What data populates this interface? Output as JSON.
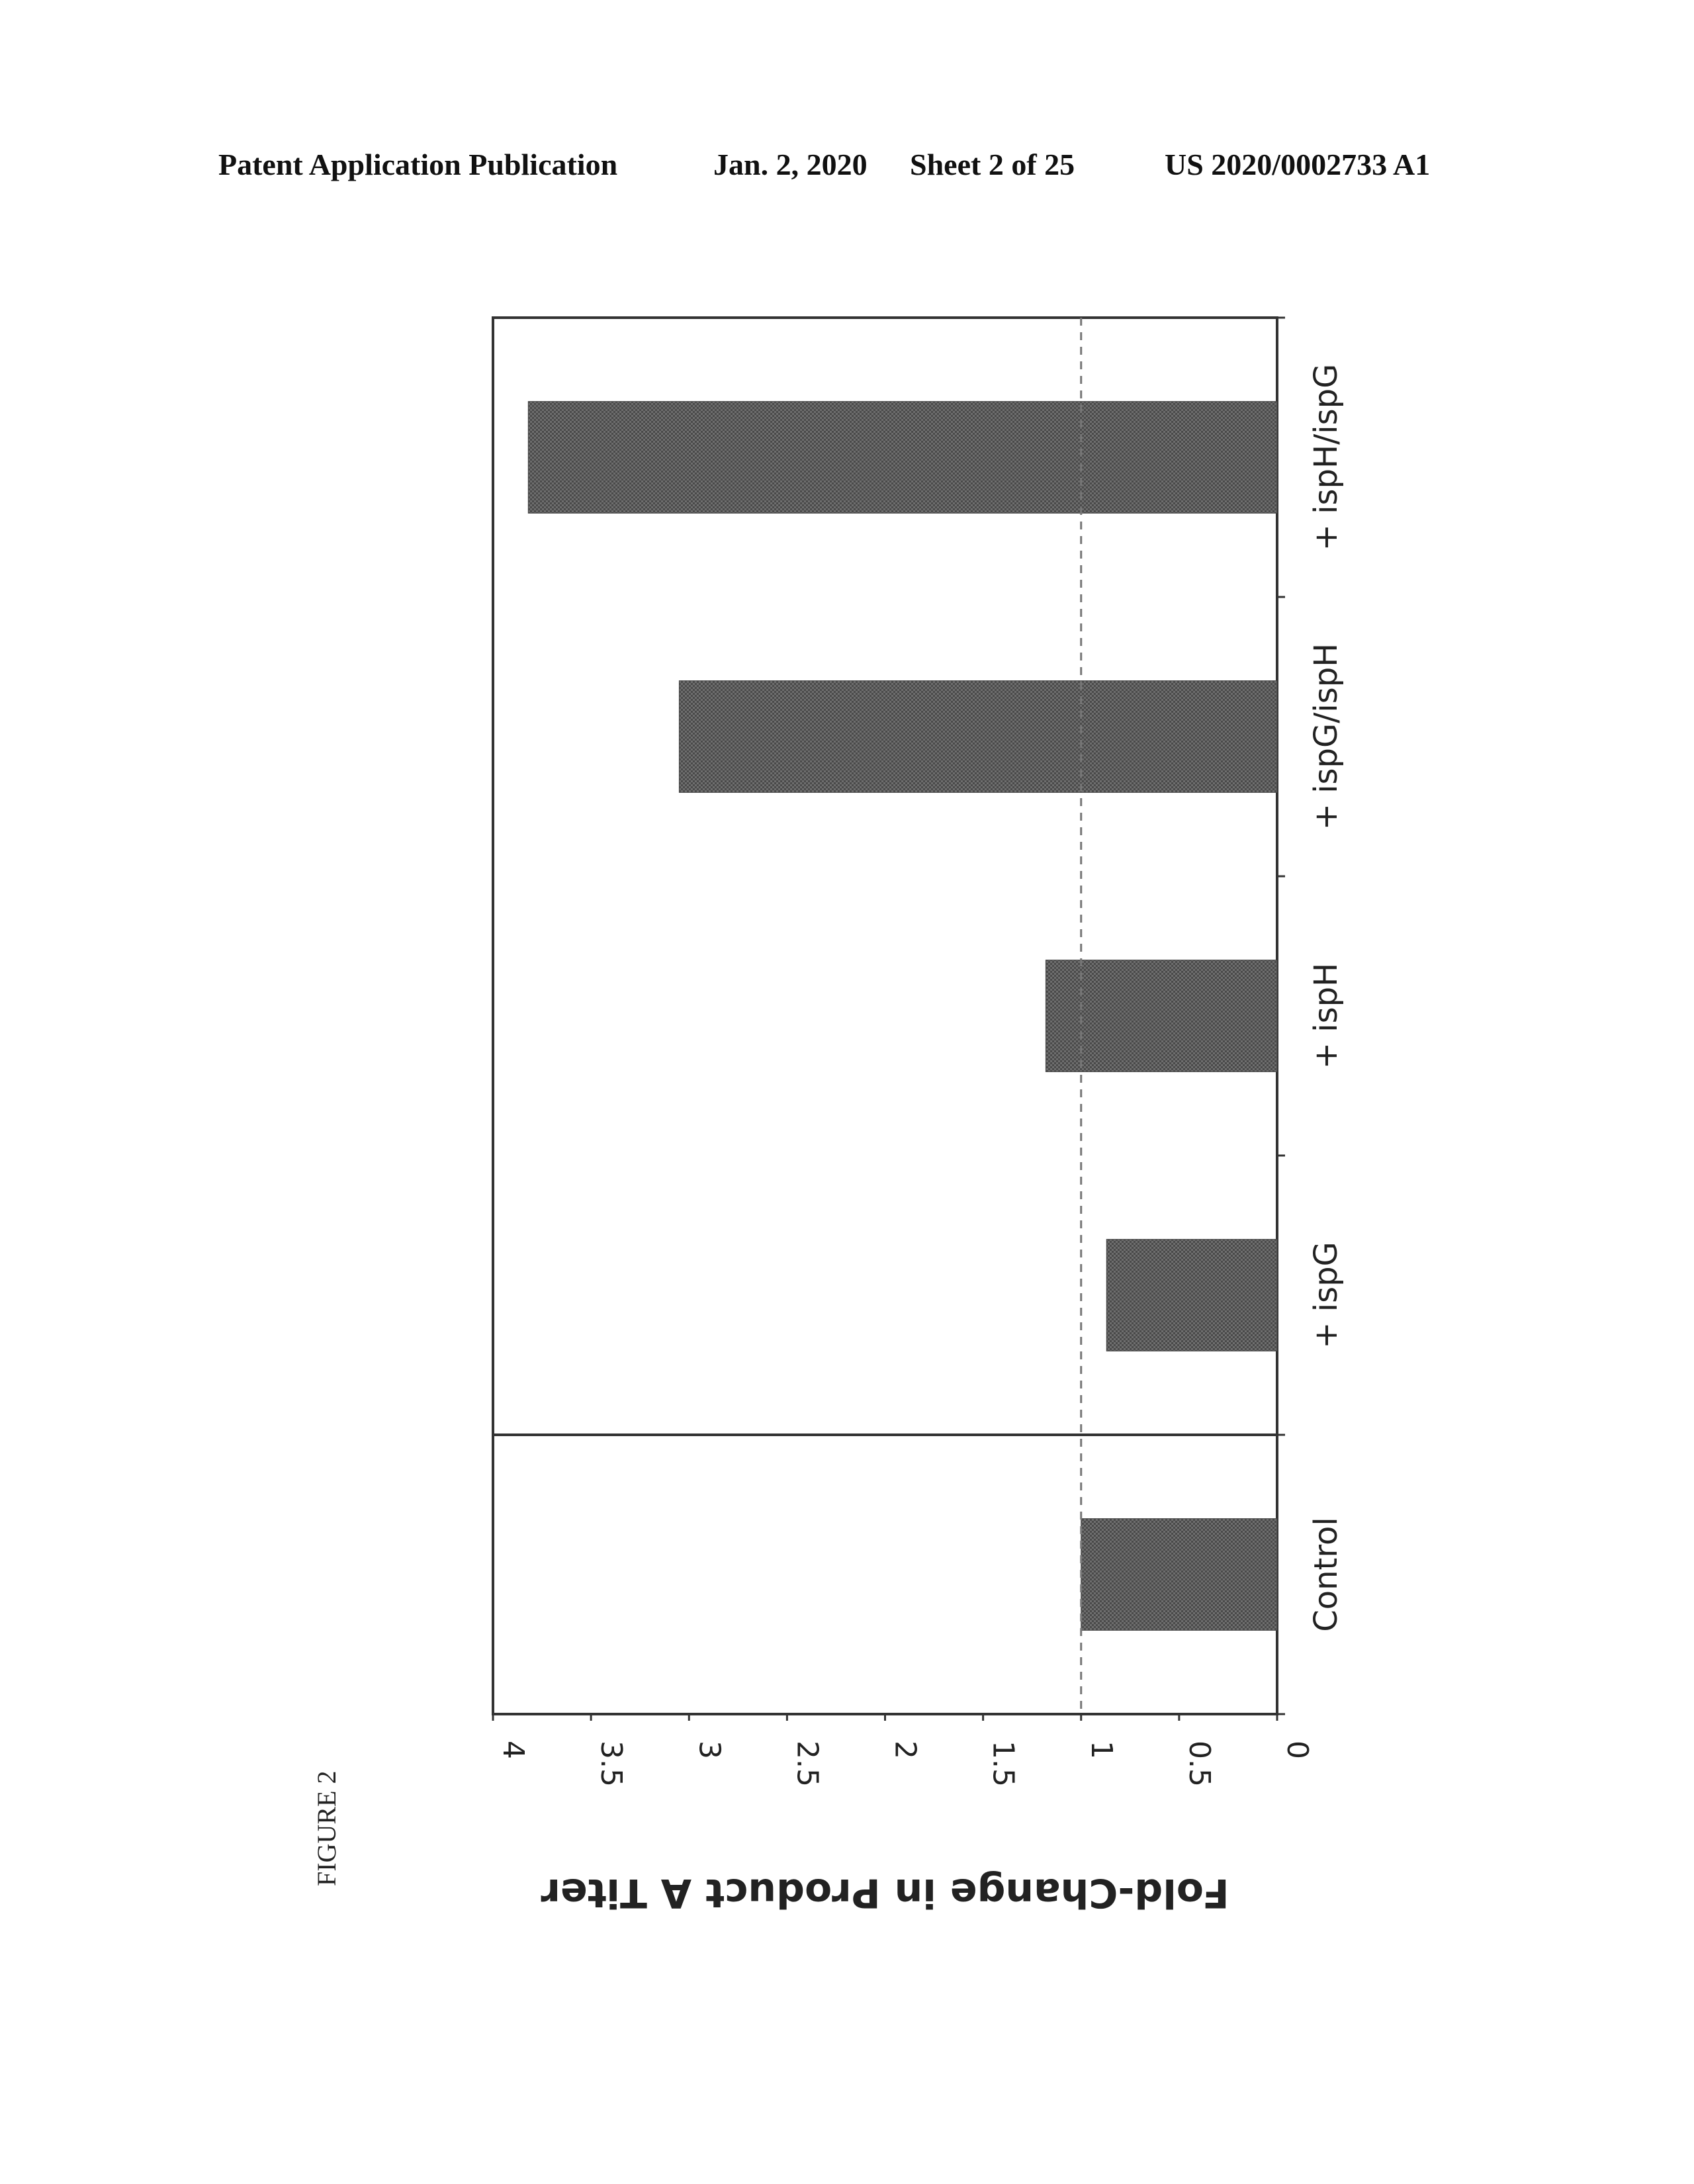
{
  "header": {
    "publication": "Patent Application Publication",
    "date": "Jan. 2, 2020",
    "sheet": "Sheet 2 of 25",
    "number": "US 2020/0002733 A1"
  },
  "figure_label": "FIGURE 2",
  "colors": {
    "bar": "#5a5a5a",
    "axis": "#333333",
    "reference_line": "#777777"
  },
  "chart_data": {
    "type": "bar",
    "orientation": "vertical, page rotated 90 degrees clockwise",
    "title": "",
    "xlabel": "",
    "ylabel": "Fold-Change in Product A Titer",
    "categories": [
      "Control",
      "+ ispG",
      "+ ispH",
      "+ ispG/ispH",
      "+ ispH/ispG"
    ],
    "values": [
      1.0,
      0.87,
      1.18,
      3.05,
      3.82
    ],
    "ylim": [
      0,
      4
    ],
    "yticks": [
      "0",
      "0.5",
      "1",
      "1.5",
      "2",
      "2.5",
      "3",
      "3.5",
      "4"
    ],
    "ytick_values": [
      0,
      0.5,
      1,
      1.5,
      2,
      2.5,
      3,
      3.5,
      4
    ],
    "reference_line": 1,
    "separator_after_category": 0,
    "grid": false,
    "legend": "none"
  }
}
